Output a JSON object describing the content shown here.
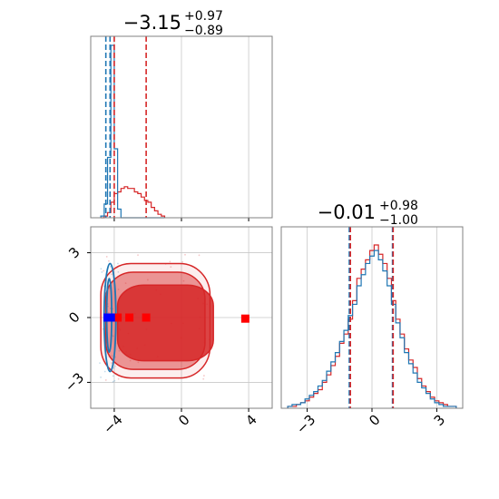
{
  "colors": {
    "red": "#d62728",
    "blue": "#1f77b4",
    "marker_red": "#ff0000",
    "marker_blue": "#0000ff",
    "grid": "#c8c8c8",
    "frame": "#808080"
  },
  "chart_data": {
    "type": "corner",
    "parameters": [
      {
        "title": {
          "value": "−3.15",
          "plus": "+0.97",
          "minus": "−0.89"
        },
        "range": [
          -5.4,
          5.4
        ],
        "ticks": [
          -4,
          0,
          4
        ],
        "tick_labels": [
          "−4",
          "0",
          "4"
        ],
        "quantiles_red": [
          -4.0,
          -2.1
        ],
        "quantiles_blue": [
          -4.5,
          -4.25
        ]
      },
      {
        "title": {
          "value": "−0.01",
          "plus": "+0.98",
          "minus": "−1.00"
        },
        "range": [
          -4.2,
          4.2
        ],
        "ticks": [
          -3,
          0,
          3
        ],
        "tick_labels": [
          "−3",
          "0",
          "3"
        ],
        "quantiles_red": [
          -1.0,
          0.98
        ],
        "quantiles_blue": [
          -1.05,
          0.95
        ]
      }
    ],
    "marginal_x1": {
      "bin_edges": [
        -4.8,
        -4.6,
        -4.4,
        -4.2,
        -4.0,
        -3.8,
        -3.6,
        -3.4,
        -3.2,
        -3.0,
        -2.8,
        -2.6,
        -2.4,
        -2.2,
        -2.0,
        -1.8,
        -1.6,
        -1.4,
        -1.2,
        -1.0
      ],
      "series": [
        {
          "name": "",
          "color_key": "red",
          "values": [
            0,
            1,
            3,
            9,
            14,
            15,
            17,
            18,
            17,
            17,
            15,
            14,
            12,
            10,
            9,
            6,
            4,
            2,
            1
          ]
        },
        {
          "name": "",
          "color_key": "blue",
          "values": [
            1,
            8,
            35,
            100,
            40,
            5,
            0,
            0,
            0,
            0,
            0,
            0,
            0,
            0,
            0,
            0,
            0,
            0,
            0
          ]
        }
      ]
    },
    "marginal_x2": {
      "bin_edges": [
        -3.9,
        -3.7,
        -3.5,
        -3.3,
        -3.1,
        -2.9,
        -2.7,
        -2.5,
        -2.3,
        -2.1,
        -1.9,
        -1.7,
        -1.5,
        -1.3,
        -1.1,
        -0.9,
        -0.7,
        -0.5,
        -0.3,
        -0.1,
        0.1,
        0.3,
        0.5,
        0.7,
        0.9,
        1.1,
        1.3,
        1.5,
        1.7,
        1.9,
        2.1,
        2.3,
        2.5,
        2.7,
        2.9,
        3.1,
        3.3,
        3.5,
        3.7,
        3.9
      ],
      "series": [
        {
          "name": "",
          "color_key": "red",
          "values": [
            1,
            1,
            2,
            3,
            4,
            6,
            8,
            10,
            14,
            18,
            23,
            28,
            35,
            40,
            48,
            58,
            70,
            75,
            80,
            85,
            88,
            83,
            78,
            70,
            58,
            48,
            40,
            32,
            26,
            22,
            16,
            12,
            9,
            6,
            4,
            3,
            2,
            1,
            1
          ]
        },
        {
          "name": "",
          "color_key": "blue",
          "values": [
            1,
            2,
            2,
            3,
            5,
            7,
            9,
            12,
            15,
            20,
            25,
            30,
            36,
            42,
            50,
            56,
            66,
            72,
            78,
            82,
            85,
            80,
            74,
            66,
            56,
            46,
            38,
            30,
            24,
            19,
            14,
            11,
            8,
            5,
            3,
            2,
            1,
            1,
            1
          ]
        }
      ]
    },
    "joint": {
      "red_contours": [
        {
          "level": "inner",
          "x": [
            -3.8,
            1.9
          ],
          "y": [
            -2.0,
            1.5
          ]
        },
        {
          "level": "outer",
          "x": [
            -4.5,
            1.4
          ],
          "y": [
            -2.4,
            2.1
          ]
        },
        {
          "level": "outermost",
          "x": [
            -4.8,
            1.7
          ],
          "y": [
            -2.8,
            2.5
          ]
        }
      ],
      "blue_contours": [
        {
          "level": "inner",
          "x": [
            -4.45,
            -4.15
          ],
          "y": [
            -1.6,
            1.8
          ]
        },
        {
          "level": "outer",
          "x": [
            -4.6,
            -3.9
          ],
          "y": [
            -2.5,
            2.5
          ]
        }
      ],
      "red_markers": [
        {
          "x": -3.8,
          "y": 0.0
        },
        {
          "x": -3.1,
          "y": 0.0
        },
        {
          "x": -2.1,
          "y": 0.0
        },
        {
          "x": 3.8,
          "y": -0.05
        }
      ],
      "blue_markers": [
        {
          "x": -4.4,
          "y": 0.0
        },
        {
          "x": -4.2,
          "y": 0.0
        }
      ]
    }
  }
}
